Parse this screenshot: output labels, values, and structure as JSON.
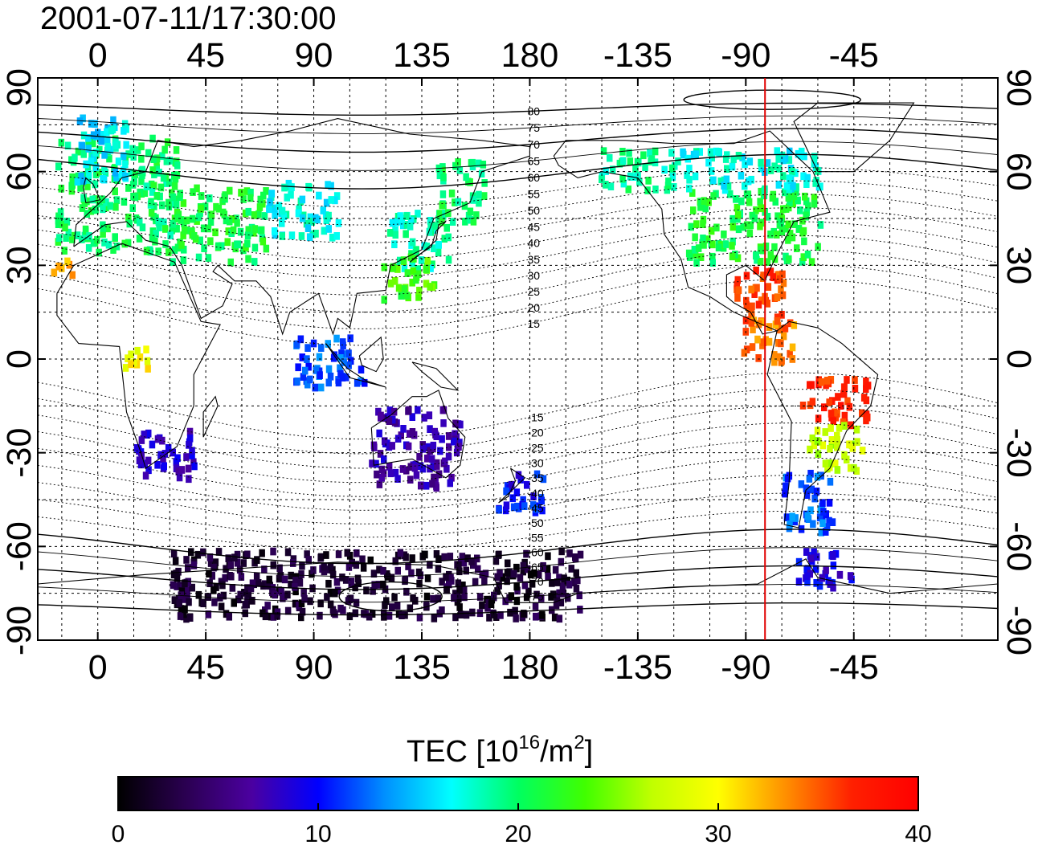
{
  "title": "2001-07-11/17:30:00",
  "map": {
    "lon_range": [
      -25,
      375
    ],
    "lat_range": [
      -90,
      90
    ],
    "top_lon_ticks": [
      "0",
      "45",
      "90",
      "135",
      "180",
      "-135",
      "-90",
      "-45"
    ],
    "bottom_lon_ticks": [
      "0",
      "45",
      "90",
      "135",
      "180",
      "-135",
      "-90",
      "-45"
    ],
    "tick_lon_values": [
      0,
      45,
      90,
      135,
      180,
      225,
      270,
      315
    ],
    "lat_ticks": [
      "90",
      "60",
      "30",
      "0",
      "-30",
      "-60",
      "-90"
    ],
    "tick_lat_values": [
      90,
      60,
      30,
      0,
      -30,
      -60,
      -90
    ],
    "grid_step_deg": 15,
    "grid": true,
    "terminator_lon": 278,
    "terminator_color": "#e00000",
    "contour_labels": [
      "80",
      "75",
      "70",
      "65",
      "60",
      "55",
      "50",
      "45",
      "40",
      "35",
      "30",
      "25",
      "20",
      "15",
      "-15",
      "-20",
      "-25",
      "-30",
      "-35",
      "-40",
      "-45",
      "-50",
      "-55",
      "-60",
      "-65",
      "-70",
      "-75"
    ],
    "contour_label_lats": [
      80,
      75,
      70,
      65,
      60,
      55,
      50,
      45,
      40,
      35,
      30,
      25,
      20,
      15,
      -15,
      -20,
      -25,
      -30,
      -35,
      -40,
      -45,
      -50,
      -55,
      -60,
      -65,
      -70,
      -75
    ],
    "regions": [
      {
        "lon": [
          -18,
          32
        ],
        "lat": [
          35,
          72
        ],
        "v": 20
      },
      {
        "lon": [
          -10,
          12
        ],
        "lat": [
          58,
          80
        ],
        "v": 16
      },
      {
        "lon": [
          30,
          70
        ],
        "lat": [
          32,
          56
        ],
        "v": 21
      },
      {
        "lon": [
          70,
          100
        ],
        "lat": [
          40,
          58
        ],
        "v": 17
      },
      {
        "lon": [
          120,
          145
        ],
        "lat": [
          30,
          48
        ],
        "v": 18
      },
      {
        "lon": [
          118,
          140
        ],
        "lat": [
          20,
          34
        ],
        "v": 23
      },
      {
        "lon": [
          140,
          160
        ],
        "lat": [
          45,
          65
        ],
        "v": 20
      },
      {
        "lon": [
          208,
          240
        ],
        "lat": [
          55,
          68
        ],
        "v": 19
      },
      {
        "lon": [
          245,
          300
        ],
        "lat": [
          32,
          55
        ],
        "v": 21
      },
      {
        "lon": [
          240,
          300
        ],
        "lat": [
          55,
          68
        ],
        "v": 17
      },
      {
        "lon": [
          263,
          285
        ],
        "lat": [
          12,
          30
        ],
        "v": 36
      },
      {
        "lon": [
          268,
          290
        ],
        "lat": [
          0,
          14
        ],
        "v": 34
      },
      {
        "lon": [
          292,
          320
        ],
        "lat": [
          -20,
          -5
        ],
        "v": 37
      },
      {
        "lon": [
          295,
          318
        ],
        "lat": [
          -35,
          -20
        ],
        "v": 27
      },
      {
        "lon": [
          285,
          305
        ],
        "lat": [
          -55,
          -35
        ],
        "v": 12
      },
      {
        "lon": [
          290,
          315
        ],
        "lat": [
          -72,
          -60
        ],
        "v": 9
      },
      {
        "lon": [
          15,
          40
        ],
        "lat": [
          -38,
          -22
        ],
        "v": 8
      },
      {
        "lon": [
          112,
          150
        ],
        "lat": [
          -40,
          -15
        ],
        "v": 7
      },
      {
        "lon": [
          165,
          185
        ],
        "lat": [
          -48,
          -35
        ],
        "v": 10
      },
      {
        "lon": [
          80,
          110
        ],
        "lat": [
          -8,
          8
        ],
        "v": 12
      },
      {
        "lon": [
          30,
          200
        ],
        "lat": [
          -82,
          -60
        ],
        "v": 2
      },
      {
        "lon": [
          10,
          20
        ],
        "lat": [
          -5,
          5
        ],
        "v": 30
      },
      {
        "lon": [
          -20,
          -10
        ],
        "lat": [
          28,
          33
        ],
        "v": 32
      }
    ]
  },
  "colorbar": {
    "label_main": "TEC  [10",
    "label_sup1": "16",
    "label_mid": "/m",
    "label_sup2": "2",
    "label_end": "]",
    "min": 0,
    "max": 40,
    "ticks": [
      "0",
      "10",
      "20",
      "30",
      "40"
    ],
    "tick_values": [
      0,
      10,
      20,
      30,
      40
    ],
    "colors": [
      "#000000",
      "#2a0050",
      "#4b00a0",
      "#0000ff",
      "#0090ff",
      "#00ffff",
      "#00ff60",
      "#40ff00",
      "#c0ff00",
      "#ffff00",
      "#ff9000",
      "#ff2000",
      "#ff0000"
    ]
  }
}
